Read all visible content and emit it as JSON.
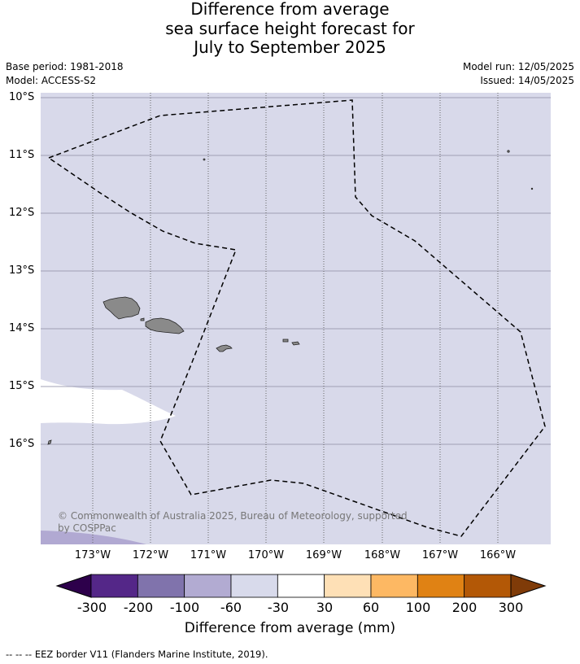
{
  "title": {
    "line1": "Difference from average",
    "line2": "sea surface height forecast for",
    "line3": "July to September 2025"
  },
  "meta": {
    "base_period": "Base period: 1981-2018",
    "model": "Model: ACCESS-S2",
    "model_run": "Model run: 12/05/2025",
    "issued": "Issued: 14/05/2025"
  },
  "map": {
    "lat_labels": [
      "10°S",
      "11°S",
      "12°S",
      "13°S",
      "14°S",
      "15°S",
      "16°S"
    ],
    "lon_labels": [
      "173°W",
      "172°W",
      "171°W",
      "170°W",
      "169°W",
      "168°W",
      "167°W",
      "166°W"
    ],
    "copyright": "© Commonwealth of Australia 2025, Bureau of Meteorology, supported",
    "copyright_line2": "by COSPPac",
    "colors": {
      "background_class": "#d8d9ea",
      "neutral_class": "#ffffff",
      "low_class": "#b1a9d2",
      "land": "#8a8a8a"
    }
  },
  "colorbar": {
    "ticks": [
      "-300",
      "-200",
      "-100",
      "-60",
      "-30",
      "30",
      "60",
      "100",
      "200",
      "300"
    ],
    "colors": [
      "#2d004b",
      "#542788",
      "#8073ac",
      "#b2abd2",
      "#d8daeb",
      "#ffffff",
      "#fee0b6",
      "#fdb863",
      "#e08214",
      "#b35806",
      "#7f3b08"
    ],
    "title": "Difference from average (mm)"
  },
  "footnote": "--  --  -- EEZ border V11 (Flanders Marine Institute, 2019)."
}
